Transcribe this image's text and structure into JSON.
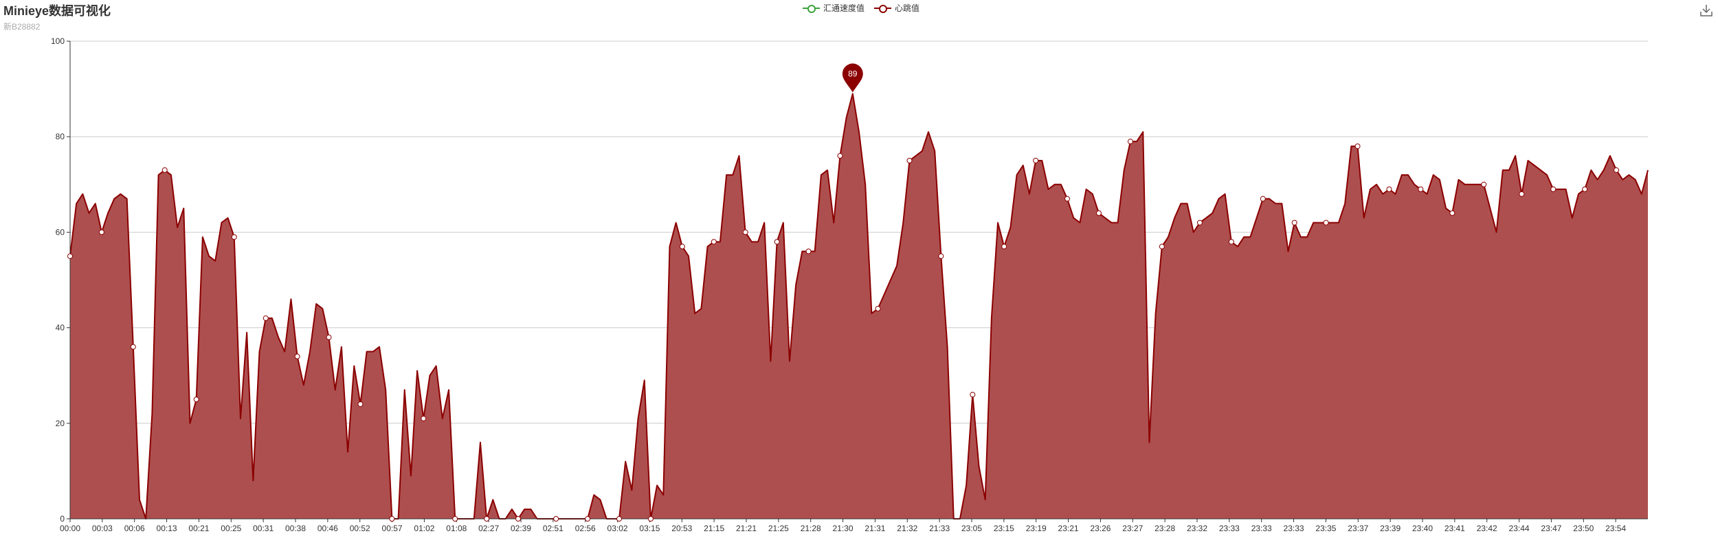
{
  "title": "Minieye数据可视化",
  "subtitle": "新B28882",
  "legend": [
    {
      "name": "汇通速度值",
      "color": "#3aa33a"
    },
    {
      "name": "心跳值",
      "color": "#8b0000"
    }
  ],
  "toolbox": {
    "icon": "download-icon"
  },
  "colors": {
    "line": "#8b0000",
    "area": "#ad4f4f",
    "grid": "#cccccc",
    "axis": "#333333"
  },
  "chart_data": {
    "type": "area",
    "title": "Minieye数据可视化",
    "subtitle": "新B28882",
    "xlabel": "",
    "ylabel": "",
    "ylim": [
      0,
      100
    ],
    "yticks": [
      0,
      20,
      40,
      60,
      80,
      100
    ],
    "grid": true,
    "legend_position": "top-center",
    "x_tick_labels": [
      "00:00",
      "00:03",
      "00:06",
      "00:13",
      "00:21",
      "00:25",
      "00:31",
      "00:38",
      "00:46",
      "00:52",
      "00:57",
      "01:02",
      "01:08",
      "02:27",
      "02:39",
      "02:51",
      "02:56",
      "03:02",
      "03:15",
      "20:53",
      "21:15",
      "21:21",
      "21:25",
      "21:28",
      "21:30",
      "21:31",
      "21:32",
      "21:33",
      "23:05",
      "23:15",
      "23:19",
      "23:21",
      "23:26",
      "23:27",
      "23:28",
      "23:32",
      "23:33",
      "23:33",
      "23:33",
      "23:35",
      "23:37",
      "23:39",
      "23:40",
      "23:41",
      "23:42",
      "23:44",
      "23:47",
      "23:50",
      "23:54"
    ],
    "series": [
      {
        "name": "汇通速度值",
        "values": []
      },
      {
        "name": "心跳值",
        "values": [
          55,
          66,
          68,
          64,
          66,
          60,
          64,
          67,
          68,
          67,
          36,
          4,
          0,
          22,
          72,
          73,
          72,
          61,
          65,
          20,
          25,
          59,
          55,
          54,
          62,
          63,
          59,
          21,
          39,
          8,
          35,
          42,
          42,
          38,
          35,
          46,
          34,
          28,
          35,
          45,
          44,
          38,
          27,
          36,
          14,
          32,
          24,
          35,
          35,
          36,
          27,
          0,
          0,
          27,
          9,
          31,
          21,
          30,
          32,
          21,
          27,
          0,
          0,
          0,
          0,
          16,
          0,
          4,
          0,
          0,
          2,
          0,
          2,
          2,
          0,
          0,
          0,
          0,
          0,
          0,
          0,
          0,
          0,
          5,
          4,
          0,
          0,
          0,
          12,
          6,
          21,
          29,
          0,
          7,
          5,
          57,
          62,
          57,
          55,
          43,
          44,
          57,
          58,
          58,
          72,
          72,
          76,
          60,
          58,
          58,
          62,
          33,
          58,
          62,
          33,
          49,
          56,
          56,
          56,
          72,
          73,
          62,
          76,
          84,
          89,
          81,
          70,
          43,
          44,
          47,
          50,
          53,
          62,
          75,
          76,
          77,
          81,
          77,
          55,
          36,
          0,
          0,
          7,
          26,
          11,
          4,
          42,
          62,
          57,
          61,
          72,
          74,
          68,
          75,
          75,
          69,
          70,
          70,
          67,
          63,
          62,
          69,
          68,
          64,
          63,
          62,
          62,
          73,
          79,
          79,
          81,
          16,
          43,
          57,
          59,
          63,
          66,
          66,
          60,
          62,
          63,
          64,
          67,
          68,
          58,
          57,
          59,
          59,
          63,
          67,
          67,
          66,
          66,
          56,
          62,
          59,
          59,
          62,
          62,
          62,
          62,
          62,
          66,
          78,
          78,
          63,
          69,
          70,
          68,
          69,
          68,
          72,
          72,
          70,
          69,
          68,
          72,
          71,
          65,
          64,
          71,
          70,
          70,
          70,
          70,
          65,
          60,
          73,
          73,
          76,
          68,
          75,
          74,
          73,
          72,
          69,
          69,
          69,
          63,
          68,
          69,
          73,
          71,
          73,
          76,
          73,
          71,
          72,
          71,
          68,
          73
        ]
      }
    ],
    "highlight": {
      "series": "心跳值",
      "label": "89",
      "value": 89
    }
  }
}
